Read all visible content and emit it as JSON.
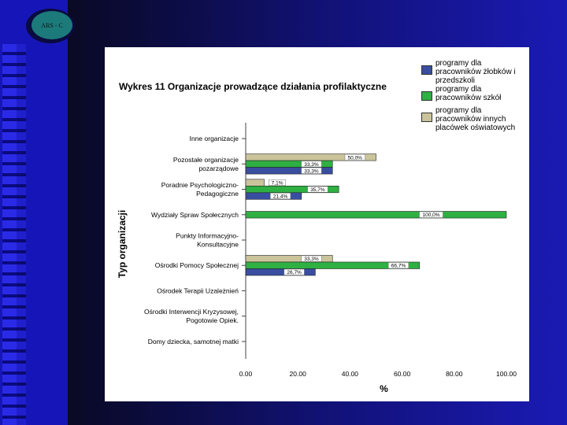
{
  "slide": {
    "logo_text": "ARS - C"
  },
  "legend": [
    {
      "label": "programy dla pracowników żłobków i przedszkoli",
      "color": "#3a4ea0"
    },
    {
      "label": "programy dla pracowników szkół",
      "color": "#2eb043"
    },
    {
      "label": "programy dla pracowników innych placówek oświatowych",
      "color": "#cbc49b"
    }
  ],
  "chart_data": {
    "type": "bar",
    "orientation": "horizontal",
    "title": "Wykres 11 Organizacje prowadzące działania profilaktyczne",
    "xlabel": "%",
    "ylabel": "Typ organizacji",
    "xlim": [
      0,
      100
    ],
    "xticks": [
      "0.00",
      "20.00",
      "40.00",
      "60.00",
      "80.00",
      "100.00"
    ],
    "categories": [
      [
        "Inne organizacje"
      ],
      [
        "Pozostałe organizacje",
        "pozarządowe"
      ],
      [
        "Poradnie Psychologiczno-",
        "Pedagogiczne"
      ],
      [
        "Wydziały Spraw Społecznych"
      ],
      [
        "Punkty Informacyjno-",
        "Konsultacyjne"
      ],
      [
        "Ośrodki Pomocy Społecznej"
      ],
      [
        "Ośrodek Terapii Uzależnień"
      ],
      [
        "Ośrodki Interwencji Kryzysowej,",
        "Pogotowie Opiek."
      ],
      [
        "Domy dziecka, samotnej matki"
      ]
    ],
    "series": [
      {
        "name": "programy dla pracowników innych placówek oświatowych",
        "values": [
          0,
          50.0,
          7.1,
          0,
          0,
          33.3,
          0,
          0,
          0
        ],
        "labels": [
          "",
          "50,0%",
          "7,1%",
          "",
          "",
          "33,3%",
          "",
          "",
          ""
        ]
      },
      {
        "name": "programy dla pracowników szkół",
        "values": [
          0,
          33.3,
          35.7,
          100.0,
          0,
          66.7,
          0,
          0,
          0
        ],
        "labels": [
          "",
          "33,3%",
          "35,7%",
          "100,0%",
          "",
          "66,7%",
          "",
          "",
          ""
        ]
      },
      {
        "name": "programy dla pracowników żłobków i przedszkoli",
        "values": [
          0,
          33.3,
          21.4,
          0,
          0,
          26.7,
          0,
          0,
          0
        ],
        "labels": [
          "",
          "33,3%",
          "21,4%",
          "",
          "",
          "26,7%",
          "",
          "",
          ""
        ]
      }
    ]
  }
}
